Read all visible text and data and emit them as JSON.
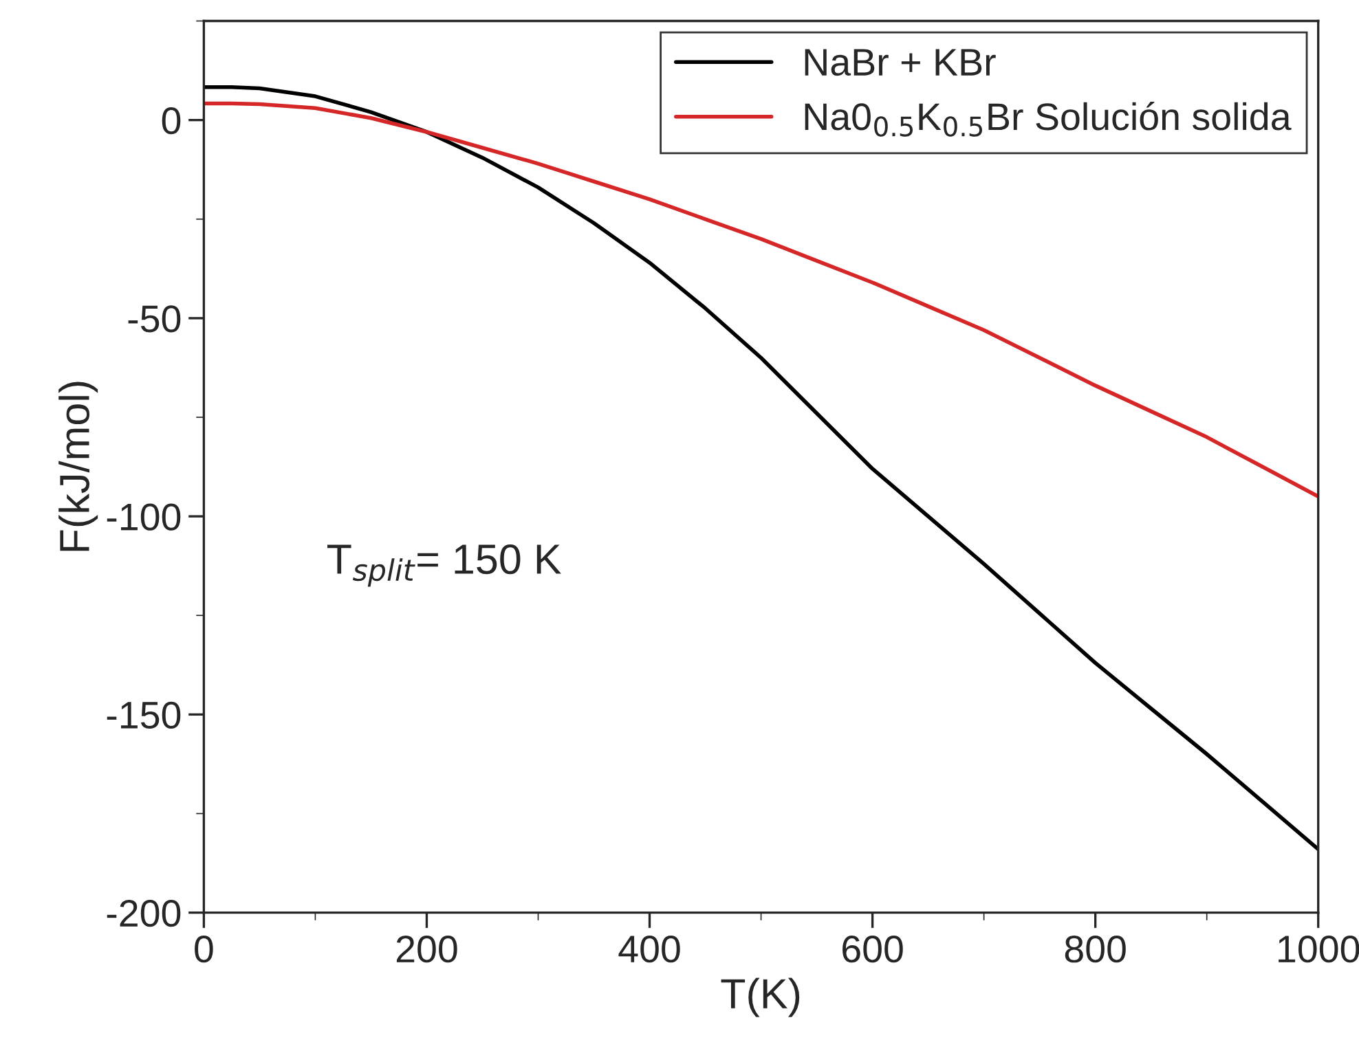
{
  "chart_data": {
    "type": "line",
    "xlabel": "T(K)",
    "ylabel": "F(kJ/mol)",
    "xlim": [
      0,
      1000
    ],
    "ylim": [
      -200,
      25
    ],
    "xticks": [
      0,
      200,
      400,
      600,
      800,
      1000
    ],
    "yticks": [
      -200,
      -150,
      -100,
      -50,
      0
    ],
    "grid": false,
    "legend": "top right",
    "marker": "none",
    "line_style": "solid",
    "annotations": [
      "T$_{split}$= 150 K"
    ],
    "series": [
      {
        "name": "NaBr + KBr",
        "color": "#000000",
        "x": [
          0,
          25,
          50,
          100,
          150,
          200,
          250,
          300,
          350,
          400,
          450,
          500,
          550,
          600,
          650,
          700,
          750,
          800,
          850,
          900,
          950,
          1000
        ],
        "values": [
          8.3,
          8.3,
          8,
          6,
          2,
          -3,
          -9.5,
          -17,
          -26,
          -36,
          -47.5,
          -60,
          -74,
          -88,
          -100,
          -112,
          -124.5,
          -137,
          -148.5,
          -160,
          -172,
          -184
        ]
      },
      {
        "name": "Na0$_{0.5}$K$_{0.5}$Br Solución solida",
        "color": "#d62728",
        "x": [
          0,
          25,
          50,
          100,
          150,
          200,
          250,
          300,
          350,
          400,
          450,
          500,
          550,
          600,
          650,
          700,
          750,
          800,
          850,
          900,
          950,
          1000
        ],
        "values": [
          4.2,
          4.2,
          4,
          3,
          0.5,
          -3,
          -7,
          -11,
          -15.5,
          -20,
          -25,
          -30,
          -35.5,
          -41,
          -47,
          -53,
          -60,
          -67,
          -73.5,
          -80,
          -87.5,
          -95
        ]
      }
    ]
  }
}
